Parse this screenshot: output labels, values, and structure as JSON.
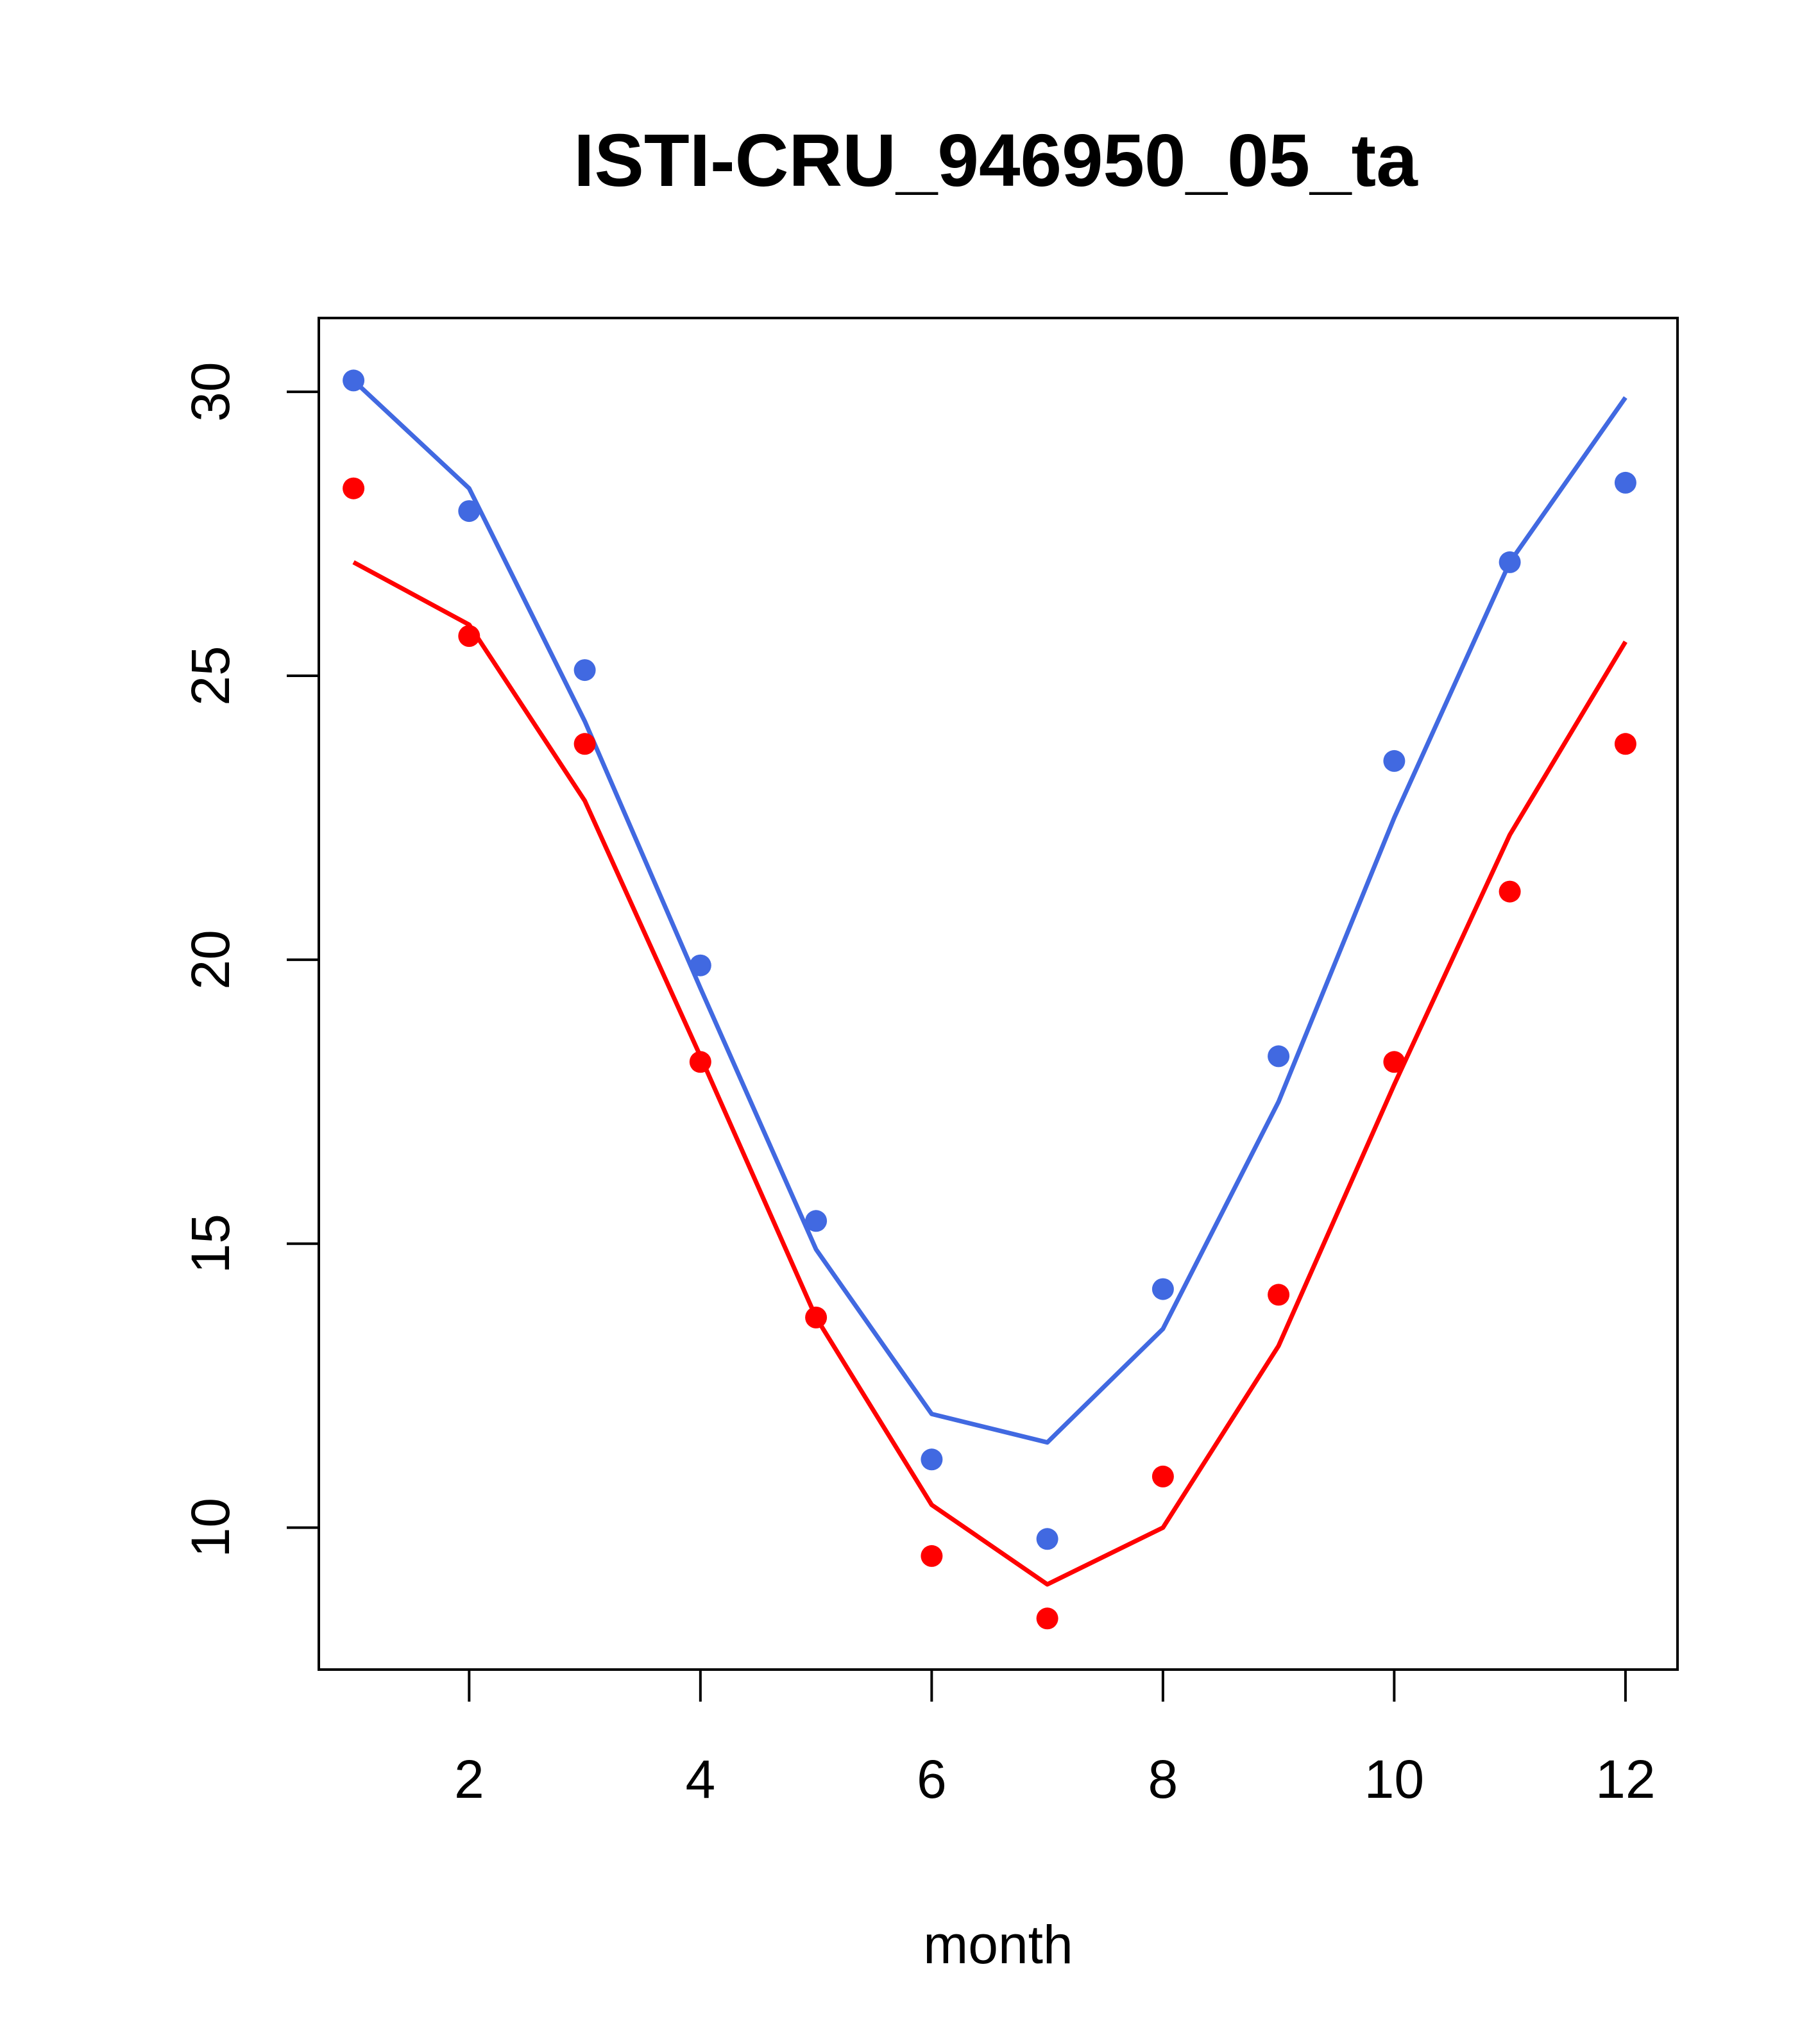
{
  "chart_data": {
    "type": "line",
    "title": "ISTI-CRU_946950_05_ta",
    "xlabel": "month",
    "ylabel": "",
    "xlim": [
      0.7,
      12.45
    ],
    "ylim": [
      7.5,
      31.3
    ],
    "x_ticks": [
      2,
      4,
      6,
      8,
      10,
      12
    ],
    "y_ticks": [
      10,
      15,
      20,
      25,
      30
    ],
    "x_tick_labels": [
      "2",
      "4",
      "6",
      "8",
      "10",
      "12"
    ],
    "y_tick_labels": [
      "10",
      "15",
      "20",
      "25",
      "30"
    ],
    "grid": false,
    "legend": "none",
    "x": [
      1,
      2,
      3,
      4,
      5,
      6,
      7,
      8,
      9,
      10,
      11,
      12
    ],
    "series": [
      {
        "color": "#4169E1",
        "line": [
          30.2,
          28.3,
          24.2,
          19.5,
          14.9,
          12.0,
          11.5,
          13.5,
          17.5,
          22.5,
          27.0,
          29.9
        ],
        "points": [
          30.2,
          27.9,
          25.1,
          19.9,
          15.4,
          11.2,
          9.8,
          14.2,
          18.3,
          23.5,
          27.0,
          28.4
        ]
      },
      {
        "color": "#FF0000",
        "line": [
          27.0,
          25.9,
          22.8,
          18.3,
          13.7,
          10.4,
          9.0,
          10.0,
          13.2,
          17.8,
          22.2,
          25.6
        ],
        "points": [
          28.3,
          25.7,
          23.8,
          18.2,
          13.7,
          9.5,
          8.4,
          10.9,
          14.1,
          18.2,
          21.2,
          23.8
        ]
      }
    ]
  }
}
